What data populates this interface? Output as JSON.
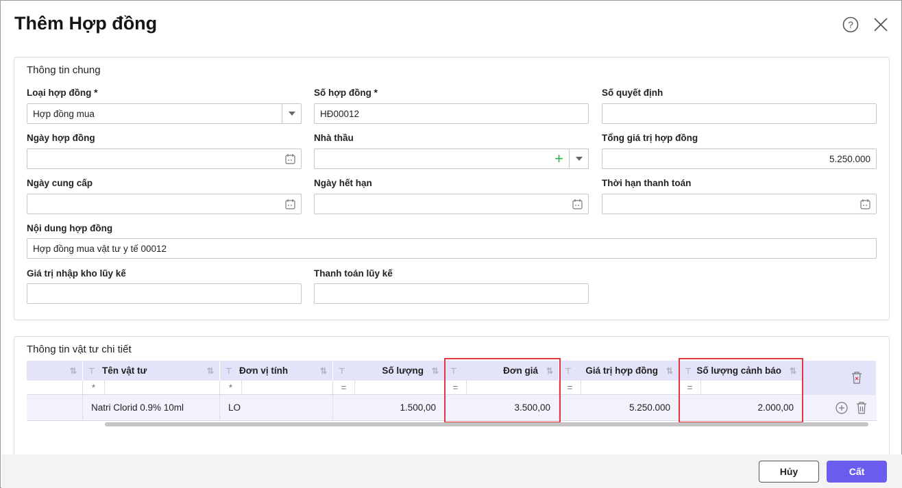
{
  "dialog": {
    "title": "Thêm Hợp đồng",
    "help_icon": "question-circle-icon",
    "close_icon": "close-icon"
  },
  "general": {
    "title": "Thông tin chung",
    "fields": {
      "contract_type": {
        "label": "Loại hợp đồng *",
        "value": "Hợp đồng mua"
      },
      "contract_no": {
        "label": "Số hợp đồng *",
        "value": "HĐ00012"
      },
      "decision_no": {
        "label": "Số quyết định",
        "value": ""
      },
      "contract_date": {
        "label": "Ngày hợp đồng",
        "value": ""
      },
      "contractor": {
        "label": "Nhà thầu",
        "value": ""
      },
      "total_value": {
        "label": "Tổng giá trị hợp đồng",
        "value": "5.250.000"
      },
      "supply_date": {
        "label": "Ngày cung cấp",
        "value": ""
      },
      "expiry_date": {
        "label": "Ngày hết hạn",
        "value": ""
      },
      "payment_term": {
        "label": "Thời hạn thanh toán",
        "value": ""
      },
      "content": {
        "label": "Nội dung hợp đồng",
        "value": "Hợp đồng mua vật tư y tế 00012"
      },
      "stock_value": {
        "label": "Giá trị nhập kho lũy kế",
        "value": ""
      },
      "paid": {
        "label": "Thanh toán lũy kế",
        "value": ""
      }
    }
  },
  "detail": {
    "title": "Thông tin vật tư chi tiết",
    "columns": [
      "",
      "Tên vật tư",
      "Đơn vị tính",
      "Số lượng",
      "Đơn giá",
      "Giá trị hợp đồng",
      "Số lượng cảnh báo"
    ],
    "filters": [
      "",
      "*",
      "*",
      "=",
      "=",
      "=",
      "="
    ],
    "rows": [
      [
        "",
        "Natri Clorid 0.9% 10ml",
        "LO",
        "1.500,00",
        "3.500,00",
        "5.250.000",
        "2.000,00"
      ]
    ],
    "highlighted_columns": [
      "Đơn giá",
      "Số lượng cảnh báo"
    ]
  },
  "footer": {
    "cancel": "Hủy",
    "save": "Cất"
  },
  "colors": {
    "accent": "#6b5cf0",
    "header_bg": "#e3e3fa",
    "highlight": "#e0383e",
    "plus": "#2db24a"
  }
}
